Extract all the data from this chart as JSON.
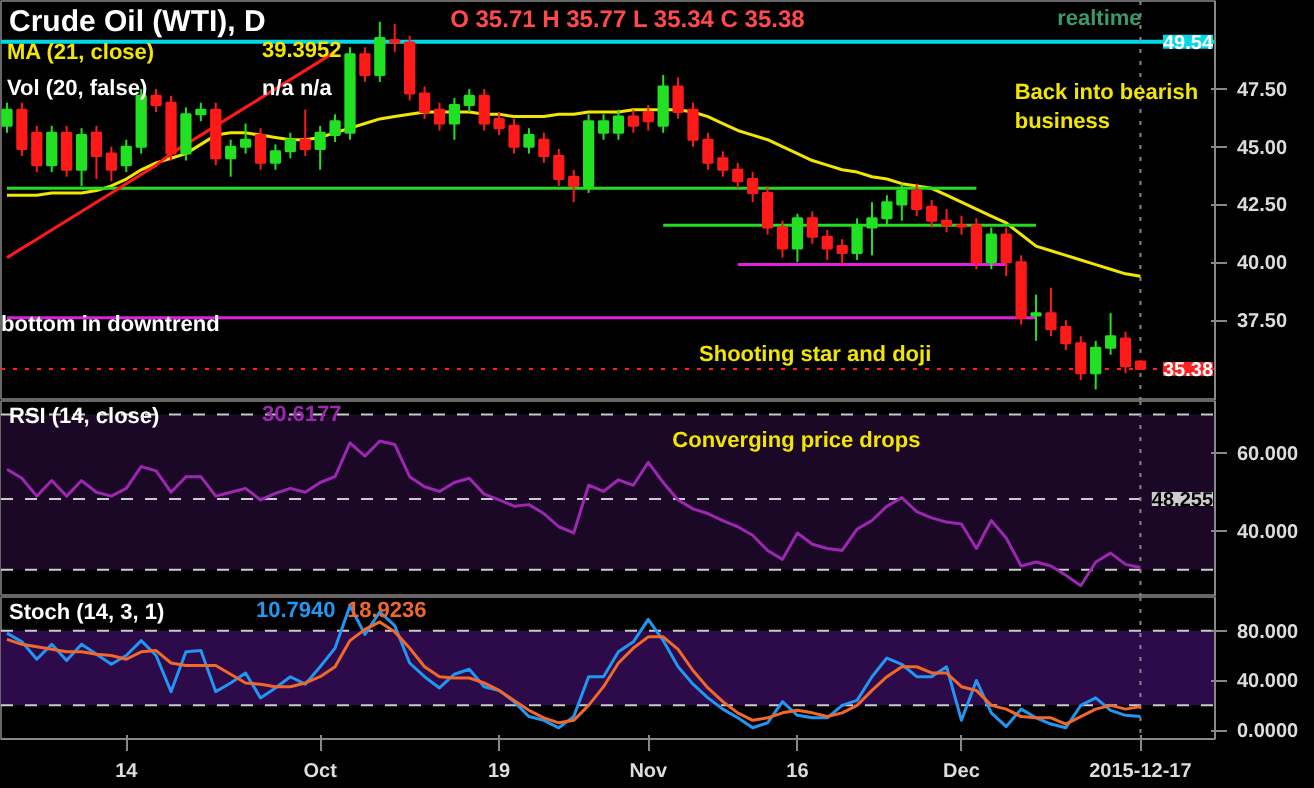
{
  "chart_data": [
    {
      "type": "candlestick",
      "title": "Crude Oil (WTI), D",
      "ylim": [
        34.0,
        51.3
      ],
      "yticks": [
        {
          "value": 37.5,
          "label": "37.50"
        },
        {
          "value": 40,
          "label": "40.00"
        },
        {
          "value": 42.5,
          "label": "42.50"
        },
        {
          "value": 45,
          "label": "45.00"
        },
        {
          "value": 47.5,
          "label": "47.50"
        }
      ],
      "tick_labels": "y",
      "grid": false,
      "legend": false,
      "categories": [
        null,
        null,
        null,
        null,
        null,
        null,
        null,
        null,
        null,
        null,
        null,
        null,
        null,
        null,
        null,
        null,
        null,
        null,
        null,
        null,
        null,
        null,
        null,
        null,
        null,
        null,
        null,
        null,
        null,
        null,
        null,
        null,
        null,
        null,
        null,
        null,
        null,
        null,
        null,
        null,
        null,
        null,
        null,
        null,
        null,
        null,
        null,
        null,
        null,
        null,
        null,
        null,
        null,
        null,
        null,
        null,
        null,
        null,
        null,
        null,
        null,
        null,
        null,
        null,
        null,
        null,
        null,
        null,
        null,
        null,
        null,
        null,
        null,
        null,
        null,
        null,
        null
      ],
      "ohlc": [
        [
          45.9,
          46.9,
          45.6,
          46.6
        ],
        [
          46.6,
          46.9,
          44.6,
          44.9
        ],
        [
          45.6,
          45.9,
          43.9,
          44.2
        ],
        [
          44.2,
          45.9,
          43.9,
          45.6
        ],
        [
          45.6,
          45.9,
          43.7,
          44.0
        ],
        [
          44.0,
          45.8,
          43.3,
          45.5
        ],
        [
          45.6,
          45.9,
          43.6,
          44.6
        ],
        [
          44.7,
          45.0,
          43.5,
          44.0
        ],
        [
          44.2,
          45.3,
          43.9,
          45.0
        ],
        [
          45.0,
          47.5,
          44.7,
          47.2
        ],
        [
          47.2,
          47.5,
          46.5,
          46.8
        ],
        [
          46.9,
          47.2,
          44.4,
          44.7
        ],
        [
          44.7,
          46.7,
          44.4,
          46.4
        ],
        [
          46.4,
          46.9,
          46.1,
          46.6
        ],
        [
          46.6,
          46.9,
          44.2,
          44.5
        ],
        [
          44.5,
          45.3,
          43.7,
          45.0
        ],
        [
          45.0,
          46.0,
          44.7,
          45.3
        ],
        [
          45.5,
          45.8,
          44.0,
          44.3
        ],
        [
          44.3,
          45.1,
          44.0,
          44.8
        ],
        [
          44.8,
          45.6,
          44.5,
          45.3
        ],
        [
          45.3,
          46.6,
          44.6,
          44.9
        ],
        [
          44.9,
          45.9,
          44.0,
          45.6
        ],
        [
          45.5,
          46.4,
          45.2,
          46.1
        ],
        [
          45.6,
          49.3,
          45.3,
          49.0
        ],
        [
          49.0,
          49.3,
          47.8,
          48.1
        ],
        [
          48.1,
          50.4,
          47.8,
          49.7
        ],
        [
          49.6,
          50.3,
          49.1,
          49.5
        ],
        [
          49.5,
          49.8,
          47.0,
          47.3
        ],
        [
          47.3,
          47.6,
          46.2,
          46.5
        ],
        [
          46.6,
          46.9,
          45.7,
          46.0
        ],
        [
          46.0,
          47.1,
          45.3,
          46.8
        ],
        [
          46.8,
          47.5,
          46.5,
          47.2
        ],
        [
          47.2,
          47.5,
          45.7,
          46.0
        ],
        [
          46.2,
          46.5,
          45.5,
          45.8
        ],
        [
          45.9,
          46.2,
          44.7,
          45.0
        ],
        [
          45.0,
          45.8,
          44.7,
          45.5
        ],
        [
          45.3,
          45.6,
          44.3,
          44.6
        ],
        [
          44.6,
          44.9,
          43.3,
          43.6
        ],
        [
          43.7,
          44.0,
          42.6,
          43.3
        ],
        [
          43.3,
          46.4,
          43.0,
          46.1
        ],
        [
          45.6,
          46.4,
          45.3,
          46.1
        ],
        [
          45.6,
          46.6,
          45.3,
          46.3
        ],
        [
          46.3,
          46.6,
          45.6,
          45.9
        ],
        [
          46.5,
          46.8,
          45.7,
          46.1
        ],
        [
          45.9,
          48.1,
          45.6,
          47.6
        ],
        [
          47.6,
          48.0,
          46.2,
          46.5
        ],
        [
          46.6,
          46.9,
          45.0,
          45.3
        ],
        [
          45.3,
          45.6,
          44.0,
          44.3
        ],
        [
          44.5,
          44.8,
          43.7,
          44.0
        ],
        [
          44.0,
          44.3,
          43.2,
          43.5
        ],
        [
          43.6,
          43.9,
          42.6,
          43.0
        ],
        [
          43.0,
          43.3,
          41.2,
          41.5
        ],
        [
          41.5,
          41.8,
          40.2,
          40.6
        ],
        [
          40.6,
          42.1,
          40.0,
          41.9
        ],
        [
          41.9,
          42.2,
          40.8,
          41.1
        ],
        [
          41.1,
          41.4,
          40.1,
          40.6
        ],
        [
          40.7,
          41.0,
          39.9,
          40.4
        ],
        [
          40.4,
          41.9,
          40.1,
          41.6
        ],
        [
          41.5,
          42.6,
          40.3,
          41.9
        ],
        [
          41.9,
          42.9,
          41.6,
          42.6
        ],
        [
          42.5,
          43.4,
          41.8,
          43.1
        ],
        [
          43.1,
          43.4,
          42.0,
          42.3
        ],
        [
          42.4,
          42.7,
          41.5,
          41.8
        ],
        [
          41.8,
          42.3,
          41.3,
          41.6
        ],
        [
          41.6,
          42.0,
          41.2,
          41.55
        ],
        [
          41.6,
          41.9,
          39.7,
          40.0
        ],
        [
          40.0,
          41.5,
          39.7,
          41.2
        ],
        [
          41.2,
          41.5,
          39.4,
          40.0
        ],
        [
          40.0,
          40.3,
          37.3,
          37.6
        ],
        [
          37.7,
          38.6,
          36.6,
          37.8
        ],
        [
          37.8,
          38.9,
          36.8,
          37.1
        ],
        [
          37.2,
          37.5,
          36.2,
          36.5
        ],
        [
          36.5,
          36.8,
          34.9,
          35.2
        ],
        [
          35.2,
          36.6,
          34.5,
          36.3
        ],
        [
          36.3,
          37.8,
          36.0,
          36.8
        ],
        [
          36.7,
          37.0,
          35.2,
          35.5
        ],
        [
          35.71,
          35.77,
          35.34,
          35.38
        ]
      ],
      "colors": [
        "#22e022",
        "#ff1a1a",
        "#ff1a1a",
        "#22e022",
        "#ff1a1a",
        "#22e022",
        "#ff1a1a",
        "#ff1a1a",
        "#22e022",
        "#22e022",
        "#ff1a1a",
        "#ff1a1a",
        "#22e022",
        "#22e022",
        "#ff1a1a",
        "#22e022",
        "#22e022",
        "#ff1a1a",
        "#22e022",
        "#22e022",
        "#ff1a1a",
        "#22e022",
        "#22e022",
        "#22e022",
        "#ff1a1a",
        "#22e022",
        "#ff1a1a",
        "#ff1a1a",
        "#ff1a1a",
        "#ff1a1a",
        "#22e022",
        "#22e022",
        "#ff1a1a",
        "#ff1a1a",
        "#ff1a1a",
        "#22e022",
        "#ff1a1a",
        "#ff1a1a",
        "#ff1a1a",
        "#22e022",
        "#22e022",
        "#22e022",
        "#ff1a1a",
        "#ff1a1a",
        "#22e022",
        "#ff1a1a",
        "#ff1a1a",
        "#ff1a1a",
        "#ff1a1a",
        "#ff1a1a",
        "#ff1a1a",
        "#ff1a1a",
        "#ff1a1a",
        "#22e022",
        "#ff1a1a",
        "#ff1a1a",
        "#ff1a1a",
        "#22e022",
        "#22e022",
        "#22e022",
        "#22e022",
        "#ff1a1a",
        "#ff1a1a",
        "#ff1a1a",
        "#ff1a1a",
        "#ff1a1a",
        "#22e022",
        "#ff1a1a",
        "#ff1a1a",
        "#22e022",
        "#ff1a1a",
        "#ff1a1a",
        "#ff1a1a",
        "#22e022",
        "#22e022",
        "#ff1a1a",
        "#ff1a1a"
      ],
      "series": [
        {
          "type": "line",
          "name": "MA (21, close)",
          "color": "#f2e600",
          "values": [
            42.9,
            42.9,
            42.9,
            43.0,
            43.0,
            43.0,
            43.1,
            43.3,
            43.6,
            44.0,
            44.3,
            44.5,
            44.7,
            45.1,
            45.5,
            45.6,
            45.6,
            45.5,
            45.4,
            45.3,
            45.3,
            45.4,
            45.6,
            45.8,
            46.0,
            46.2,
            46.3,
            46.4,
            46.5,
            46.5,
            46.5,
            46.5,
            46.4,
            46.4,
            46.3,
            46.3,
            46.3,
            46.4,
            46.4,
            46.5,
            46.5,
            46.5,
            46.6,
            46.6,
            46.6,
            46.6,
            46.5,
            46.3,
            46.0,
            45.7,
            45.5,
            45.3,
            45.0,
            44.7,
            44.4,
            44.2,
            44.0,
            43.9,
            43.7,
            43.6,
            43.4,
            43.3,
            43.2,
            42.9,
            42.6,
            42.3,
            42.0,
            41.7,
            41.2,
            40.7,
            40.5,
            40.3,
            40.1,
            39.9,
            39.7,
            39.5,
            39.4
          ]
        },
        {
          "type": "line",
          "color": "#22dd22",
          "values": [
            43.2,
            43.2,
            43.2,
            43.2,
            43.2,
            43.2,
            43.2,
            43.2,
            43.2,
            43.2,
            43.2,
            43.2,
            43.2,
            43.2,
            43.2,
            43.2,
            43.2,
            43.2,
            43.2,
            43.2,
            43.2,
            43.2,
            43.2,
            43.2,
            43.2,
            43.2,
            43.2,
            43.2,
            43.2,
            43.2,
            43.2,
            43.2,
            43.2,
            43.2,
            43.2,
            43.2,
            43.2,
            43.2,
            43.2,
            43.2,
            43.2,
            43.2,
            43.2,
            43.2,
            43.2,
            43.2,
            43.2,
            43.2,
            43.2,
            43.2,
            43.2,
            43.2,
            43.2,
            43.2,
            43.2,
            43.2,
            43.2,
            43.2,
            43.2,
            43.2,
            43.2,
            43.2,
            43.2,
            43.2,
            43.2,
            43.2,
            null,
            null,
            null,
            null,
            null,
            null,
            null,
            null,
            null,
            null,
            null
          ]
        },
        {
          "type": "line",
          "color": "#22dd22",
          "values": [
            null,
            null,
            null,
            null,
            null,
            null,
            null,
            null,
            null,
            null,
            null,
            null,
            null,
            null,
            null,
            null,
            null,
            null,
            null,
            null,
            null,
            null,
            null,
            null,
            null,
            null,
            null,
            null,
            null,
            null,
            null,
            null,
            null,
            null,
            null,
            null,
            null,
            null,
            null,
            null,
            null,
            null,
            null,
            null,
            41.6,
            41.6,
            41.6,
            41.6,
            41.6,
            41.6,
            41.6,
            41.6,
            41.6,
            41.6,
            41.6,
            41.6,
            41.6,
            41.6,
            41.6,
            41.6,
            41.6,
            41.6,
            41.6,
            41.6,
            41.6,
            41.6,
            41.6,
            41.6,
            41.6,
            41.6,
            null,
            null,
            null,
            null,
            null,
            null,
            null
          ]
        },
        {
          "type": "line",
          "color": "#dd22dd",
          "values": [
            null,
            null,
            null,
            null,
            null,
            null,
            null,
            null,
            null,
            null,
            null,
            null,
            null,
            null,
            null,
            null,
            null,
            null,
            null,
            null,
            null,
            null,
            null,
            null,
            null,
            null,
            null,
            null,
            null,
            null,
            null,
            null,
            null,
            null,
            null,
            null,
            null,
            null,
            null,
            null,
            null,
            null,
            null,
            null,
            null,
            null,
            null,
            null,
            null,
            39.9,
            39.9,
            39.9,
            39.9,
            39.9,
            39.9,
            39.9,
            39.9,
            39.9,
            39.9,
            39.9,
            39.9,
            39.9,
            39.9,
            39.9,
            39.9,
            39.9,
            39.9,
            39.9,
            null,
            null,
            null,
            null,
            null,
            null,
            null,
            null,
            null
          ]
        },
        {
          "type": "line",
          "color": "#dd22dd",
          "values": [
            37.6,
            37.6,
            37.6,
            37.6,
            37.6,
            37.6,
            37.6,
            37.6,
            37.6,
            37.6,
            37.6,
            37.6,
            37.6,
            37.6,
            37.6,
            37.6,
            37.6,
            37.6,
            37.6,
            37.6,
            37.6,
            37.6,
            37.6,
            37.6,
            37.6,
            37.6,
            37.6,
            37.6,
            37.6,
            37.6,
            37.6,
            37.6,
            37.6,
            37.6,
            37.6,
            37.6,
            37.6,
            37.6,
            37.6,
            37.6,
            37.6,
            37.6,
            37.6,
            37.6,
            37.6,
            37.6,
            37.6,
            37.6,
            37.6,
            37.6,
            37.6,
            37.6,
            37.6,
            37.6,
            37.6,
            37.6,
            37.6,
            37.6,
            37.6,
            37.6,
            37.6,
            37.6,
            37.6,
            37.6,
            37.6,
            37.6,
            37.6,
            37.6,
            37.6,
            37.6,
            null,
            null,
            null,
            null,
            null,
            null,
            null
          ]
        },
        {
          "type": "line",
          "color": "#ff1a1a",
          "values": [
            40.2,
            40.6,
            41.0,
            41.4,
            41.8,
            42.2,
            42.6,
            43.0,
            43.4,
            43.8,
            44.2,
            44.7,
            45.1,
            45.5,
            45.9,
            46.3,
            46.7,
            47.1,
            47.5,
            47.9,
            48.3,
            48.7,
            49.1,
            null,
            null,
            null,
            null,
            null,
            null,
            null,
            null,
            null,
            null,
            null,
            null,
            null,
            null,
            null,
            null,
            null,
            null,
            null,
            null,
            null,
            null,
            null,
            null,
            null,
            null,
            null,
            null,
            null,
            null,
            null,
            null,
            null,
            null,
            null,
            null,
            null,
            null,
            null,
            null,
            null,
            null,
            null,
            null,
            null,
            null,
            null,
            null,
            null,
            null,
            null,
            null,
            null,
            null
          ]
        }
      ],
      "ref_lines": [
        {
          "axis": "y",
          "value": 49.54,
          "label": "49.54",
          "color": "#00d8e8",
          "line_style": "solid"
        },
        {
          "axis": "y",
          "value": 35.38,
          "label": "35.38",
          "color": "#ff2020",
          "line_style": "dotted"
        }
      ],
      "annotations": [
        "O 35.71 H 35.77 L 35.34 C 35.38",
        "39.3952",
        "Vol (20, false)",
        "n/a n/a",
        "realtime",
        "Back into bearish\nbusiness",
        "Shooting star and doji",
        "bottom in downtrend"
      ]
    },
    {
      "type": "line",
      "title": "RSI (14, close)",
      "ylim": [
        23,
        73.5
      ],
      "yticks": [
        {
          "value": 40,
          "label": "40.000"
        },
        {
          "value": 60,
          "label": "60.000"
        }
      ],
      "tick_labels": "y",
      "grid": false,
      "legend": false,
      "categories": [
        null,
        null,
        null,
        null,
        null,
        null,
        null,
        null,
        null,
        null,
        null,
        null,
        null,
        null,
        null,
        null,
        null,
        null,
        null,
        null,
        null,
        null,
        null,
        null,
        null,
        null,
        null,
        null,
        null,
        null,
        null,
        null,
        null,
        null,
        null,
        null,
        null,
        null,
        null,
        null,
        null,
        null,
        null,
        null,
        null,
        null,
        null,
        null,
        null,
        null,
        null,
        null,
        null,
        null,
        null,
        null,
        null,
        null,
        null,
        null,
        null,
        null,
        null,
        null,
        null,
        null,
        null,
        null,
        null,
        null,
        null,
        null,
        null,
        null,
        null,
        null,
        null
      ],
      "series": [
        {
          "color": "#9c27b0",
          "values": [
            55.9,
            53.6,
            49,
            53,
            49,
            53,
            50,
            49,
            51,
            56.6,
            55.5,
            50,
            54,
            54,
            49,
            50,
            51,
            48,
            49.7,
            51,
            50,
            52.5,
            54,
            62.7,
            59.3,
            63.2,
            62.3,
            54,
            51.4,
            50.2,
            52.5,
            53.6,
            49.5,
            48,
            46.4,
            46.8,
            44.5,
            41.1,
            39.5,
            51.8,
            50.2,
            53.2,
            51.8,
            57.7,
            52.5,
            48,
            45.7,
            44.5,
            42.7,
            41.1,
            38.9,
            35,
            32.7,
            39.5,
            36.6,
            35.5,
            35,
            40.5,
            42.7,
            46.4,
            48.6,
            45,
            43.4,
            42.3,
            41.8,
            35.5,
            42.7,
            38.2,
            31,
            32,
            31,
            28.6,
            25.9,
            32,
            34.3,
            31.4,
            30.6
          ]
        }
      ],
      "bands": [
        {
          "axis": "y",
          "from": 30,
          "to": 70,
          "color": "#1a0826"
        }
      ],
      "ref_lines": [
        {
          "axis": "y",
          "value": 70,
          "color": "#cccccc",
          "line_style": "dashed"
        },
        {
          "axis": "y",
          "value": 30,
          "color": "#cccccc",
          "line_style": "dashed"
        },
        {
          "axis": "y",
          "value": 48.255,
          "label": "48.255",
          "color": "#cccccc",
          "line_style": "dashed"
        }
      ],
      "annotations": [
        "30.6177",
        "Converging price drops"
      ]
    },
    {
      "type": "line",
      "title": "Stoch (14, 3, 1)",
      "ylim": [
        -7,
        107
      ],
      "yticks": [
        {
          "value": 0,
          "label": "0.0000"
        },
        {
          "value": 40,
          "label": "40.000"
        },
        {
          "value": 80,
          "label": "80.000"
        }
      ],
      "grid": false,
      "legend": false,
      "categories": [
        null,
        null,
        null,
        null,
        null,
        null,
        null,
        null,
        "14",
        null,
        null,
        null,
        null,
        null,
        null,
        null,
        null,
        null,
        null,
        null,
        null,
        "Oct",
        null,
        null,
        null,
        null,
        null,
        null,
        null,
        null,
        null,
        null,
        null,
        "19",
        null,
        null,
        null,
        null,
        null,
        null,
        null,
        null,
        null,
        "Nov",
        null,
        null,
        null,
        null,
        null,
        null,
        null,
        null,
        null,
        "16",
        null,
        null,
        null,
        null,
        null,
        null,
        null,
        null,
        null,
        null,
        "Dec",
        null,
        null,
        null,
        null,
        null,
        null,
        null,
        null,
        null,
        null,
        null,
        "2015-12-17"
      ],
      "series": [
        {
          "color": "#2196f3",
          "values": [
            78,
            71,
            57,
            69,
            56,
            69,
            61,
            53,
            60,
            72,
            60,
            31,
            63,
            64,
            31,
            38,
            46,
            26,
            34,
            43,
            37,
            51,
            66,
            100,
            77,
            95,
            84,
            54,
            43,
            34,
            45,
            49,
            35,
            32,
            23,
            11,
            8,
            2,
            11,
            43,
            43,
            63,
            71,
            89,
            72,
            51,
            37,
            26,
            17,
            10,
            2,
            6,
            23,
            12,
            10,
            10,
            20,
            24,
            43,
            58,
            53,
            43,
            43,
            51,
            8,
            40,
            14,
            3,
            17,
            10,
            5,
            2,
            20,
            26,
            16,
            12,
            11
          ]
        },
        {
          "color": "#f0682a",
          "values": [
            73,
            69,
            67,
            65,
            63,
            63,
            61,
            60,
            57,
            63,
            64,
            54,
            52,
            52,
            52,
            45,
            38,
            37,
            35,
            35,
            38,
            43,
            51,
            72,
            81,
            87,
            79,
            66,
            51,
            43,
            42,
            42,
            38,
            32,
            24,
            16,
            10,
            6,
            8,
            20,
            35,
            54,
            66,
            75,
            75,
            65,
            48,
            34,
            23,
            14,
            8,
            10,
            14,
            16,
            14,
            11,
            14,
            20,
            32,
            43,
            51,
            51,
            46,
            46,
            35,
            32,
            20,
            17,
            11,
            10,
            10,
            5,
            11,
            17,
            20,
            17,
            19
          ]
        }
      ],
      "bands": [
        {
          "axis": "y",
          "from": 20,
          "to": 80,
          "color": "#2d0a4a"
        }
      ],
      "ref_lines": [
        {
          "axis": "y",
          "value": 80,
          "color": "#cccccc",
          "line_style": "dashed"
        },
        {
          "axis": "y",
          "value": 20,
          "color": "#cccccc",
          "line_style": "dashed"
        },
        {
          "axis": "x",
          "value": "2015-12-17",
          "color": "#888888",
          "line_style": "dotted"
        }
      ],
      "annotations": [
        "10.7940",
        "18.9236"
      ]
    }
  ]
}
